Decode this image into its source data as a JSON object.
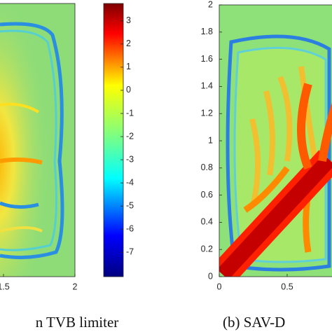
{
  "chart_data": [
    {
      "type": "heatmap-panel",
      "caption": "n TVB limiter",
      "xlim": [
        1.5,
        2
      ],
      "xticks": [
        {
          "value": 1.5,
          "label": "1.5"
        },
        2
      ]
    },
    {
      "type": "colorbar",
      "colormap": "jet",
      "clim": [
        -8.05,
        3.75
      ],
      "ticks": [
        3,
        2,
        1,
        0,
        -1,
        -2,
        -3,
        -4,
        -5,
        -6,
        -7
      ]
    },
    {
      "type": "heatmap-panel",
      "caption": "(b) SAV-D",
      "xlim": [
        0,
        1
      ],
      "ylim": [
        0,
        2
      ],
      "xticks": [
        0,
        0.5
      ],
      "yticks": [
        0,
        0.2,
        0.4,
        0.6,
        0.8,
        1,
        1.2,
        1.4,
        1.6,
        1.8,
        2
      ]
    }
  ]
}
